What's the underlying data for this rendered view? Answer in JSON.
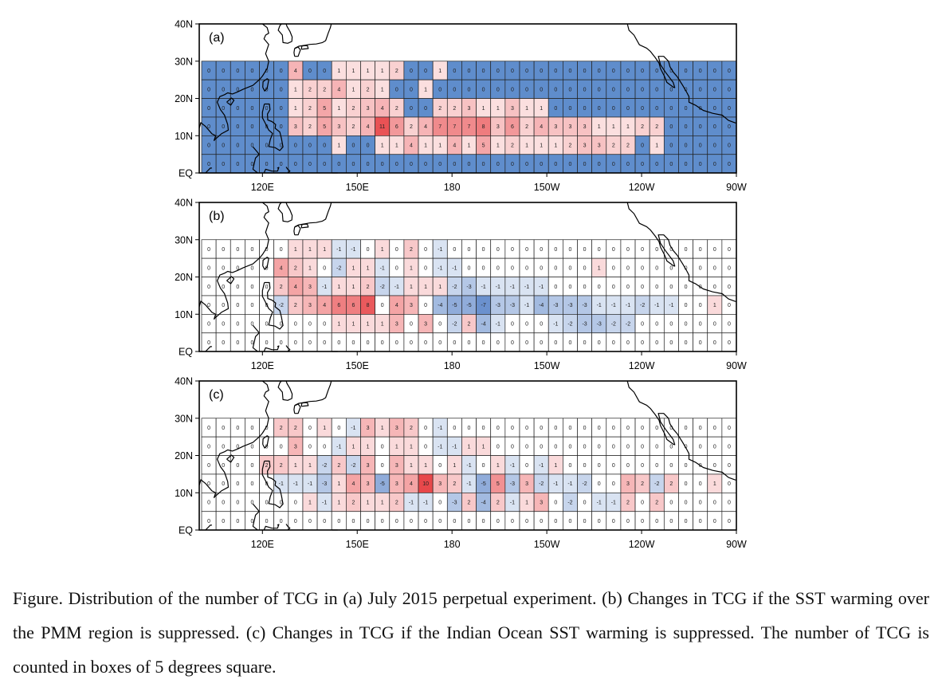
{
  "figure": {
    "lat_labels": [
      "40N",
      "30N",
      "20N",
      "10N",
      "EQ"
    ],
    "lon_labels": [
      "120E",
      "150E",
      "180",
      "150W",
      "120W",
      "90W"
    ],
    "colors": {
      "positive": "#e8484b",
      "negative": "#5a84c8",
      "zero_fill_a": "#5f8dcc",
      "grid_line": "#222222",
      "coast": "#000000"
    },
    "panels": [
      {
        "label": "(a)",
        "rows": [
          [
            0,
            0,
            0,
            0,
            0,
            0,
            4,
            0,
            0,
            1,
            1,
            1,
            1,
            2,
            0,
            0,
            1,
            0,
            0,
            0,
            0,
            0,
            0,
            0,
            0,
            0,
            0,
            0,
            0,
            0,
            0,
            0,
            0,
            0,
            0,
            0,
            0
          ],
          [
            0,
            0,
            0,
            0,
            0,
            0,
            1,
            2,
            2,
            4,
            1,
            2,
            1,
            0,
            0,
            1,
            0,
            0,
            0,
            0,
            0,
            0,
            0,
            0,
            0,
            0,
            0,
            0,
            0,
            0,
            0,
            0,
            0,
            0,
            0,
            0,
            0
          ],
          [
            0,
            0,
            0,
            0,
            0,
            0,
            1,
            2,
            5,
            1,
            2,
            3,
            4,
            2,
            0,
            0,
            2,
            2,
            3,
            1,
            1,
            3,
            1,
            1,
            0,
            0,
            0,
            0,
            0,
            0,
            0,
            0,
            0,
            0,
            0,
            0,
            0
          ],
          [
            0,
            0,
            0,
            0,
            0,
            0,
            3,
            2,
            5,
            3,
            2,
            4,
            11,
            6,
            2,
            4,
            7,
            7,
            7,
            8,
            3,
            6,
            2,
            4,
            3,
            3,
            3,
            1,
            1,
            1,
            2,
            2,
            0,
            0,
            0,
            0,
            0
          ],
          [
            0,
            0,
            0,
            0,
            0,
            0,
            0,
            0,
            0,
            1,
            0,
            0,
            1,
            1,
            4,
            1,
            1,
            4,
            1,
            5,
            1,
            2,
            1,
            1,
            1,
            2,
            3,
            3,
            2,
            2,
            0,
            1,
            0,
            0,
            0,
            0,
            0
          ],
          [
            0,
            0,
            0,
            0,
            0,
            0,
            0,
            0,
            0,
            0,
            0,
            0,
            0,
            0,
            0,
            0,
            0,
            0,
            0,
            0,
            0,
            0,
            0,
            0,
            0,
            0,
            0,
            0,
            0,
            0,
            0,
            0,
            0,
            0,
            0,
            0,
            0
          ]
        ]
      },
      {
        "label": "(b)",
        "rows": [
          [
            0,
            0,
            0,
            0,
            0,
            0,
            1,
            1,
            1,
            -1,
            -1,
            0,
            1,
            0,
            2,
            0,
            -1,
            0,
            0,
            0,
            0,
            0,
            0,
            0,
            0,
            0,
            0,
            0,
            0,
            0,
            0,
            0,
            0,
            0,
            0,
            0,
            0
          ],
          [
            0,
            0,
            0,
            0,
            0,
            4,
            2,
            1,
            0,
            -2,
            1,
            1,
            -1,
            0,
            1,
            0,
            -1,
            -1,
            0,
            0,
            0,
            0,
            0,
            0,
            0,
            0,
            0,
            1,
            0,
            0,
            0,
            0,
            0,
            0,
            0,
            0,
            0
          ],
          [
            0,
            0,
            0,
            0,
            0,
            2,
            4,
            3,
            -1,
            1,
            1,
            2,
            -2,
            -1,
            1,
            1,
            1,
            -2,
            -3,
            -1,
            -1,
            -1,
            -1,
            -1,
            0,
            0,
            0,
            0,
            0,
            0,
            0,
            0,
            0,
            0,
            0,
            0,
            0
          ],
          [
            0,
            0,
            0,
            0,
            0,
            -2,
            2,
            3,
            4,
            6,
            6,
            8,
            0,
            4,
            3,
            0,
            -4,
            -5,
            -5,
            -7,
            -3,
            -3,
            -1,
            -4,
            -3,
            -3,
            -3,
            -1,
            -1,
            -1,
            -2,
            -1,
            -1,
            0,
            0,
            1,
            0
          ],
          [
            0,
            0,
            0,
            0,
            0,
            0,
            0,
            0,
            0,
            1,
            1,
            1,
            1,
            3,
            0,
            3,
            0,
            -2,
            2,
            -4,
            -1,
            0,
            0,
            0,
            -1,
            -2,
            -3,
            -3,
            -2,
            -2,
            0,
            0,
            0,
            0,
            0,
            0,
            0
          ],
          [
            0,
            0,
            0,
            0,
            0,
            0,
            0,
            0,
            0,
            0,
            0,
            0,
            0,
            0,
            0,
            0,
            0,
            0,
            0,
            0,
            0,
            0,
            0,
            0,
            0,
            0,
            0,
            0,
            0,
            0,
            0,
            0,
            0,
            0,
            0,
            0,
            0
          ]
        ]
      },
      {
        "label": "(c)",
        "rows": [
          [
            0,
            0,
            0,
            0,
            0,
            2,
            2,
            0,
            1,
            0,
            -1,
            3,
            1,
            3,
            2,
            0,
            -1,
            0,
            0,
            0,
            0,
            0,
            0,
            0,
            0,
            0,
            0,
            0,
            0,
            0,
            0,
            0,
            0,
            0,
            0,
            0,
            0
          ],
          [
            0,
            0,
            0,
            0,
            0,
            0,
            3,
            0,
            0,
            -1,
            1,
            1,
            0,
            1,
            1,
            0,
            -1,
            -1,
            1,
            1,
            0,
            0,
            0,
            0,
            0,
            0,
            0,
            0,
            0,
            0,
            0,
            0,
            0,
            0,
            0,
            0,
            0
          ],
          [
            0,
            0,
            0,
            0,
            2,
            2,
            1,
            1,
            -2,
            2,
            -2,
            3,
            0,
            3,
            1,
            1,
            0,
            1,
            -1,
            0,
            1,
            -1,
            0,
            -1,
            1,
            0,
            0,
            0,
            0,
            0,
            0,
            0,
            0,
            0,
            0,
            0,
            0
          ],
          [
            0,
            0,
            0,
            0,
            0,
            -1,
            -1,
            -1,
            -3,
            1,
            4,
            3,
            -5,
            3,
            4,
            10,
            3,
            2,
            -1,
            -5,
            5,
            -3,
            3,
            -2,
            -1,
            -1,
            -2,
            0,
            0,
            3,
            2,
            -2,
            2,
            0,
            0,
            1,
            0
          ],
          [
            0,
            0,
            0,
            0,
            0,
            0,
            0,
            1,
            -1,
            1,
            2,
            1,
            1,
            2,
            -1,
            -1,
            0,
            -3,
            2,
            -4,
            2,
            -1,
            1,
            3,
            0,
            -2,
            0,
            -1,
            -1,
            2,
            0,
            2,
            0,
            0,
            0,
            0,
            0
          ],
          [
            0,
            0,
            0,
            0,
            0,
            0,
            0,
            0,
            0,
            0,
            0,
            0,
            0,
            0,
            0,
            0,
            0,
            0,
            0,
            0,
            0,
            0,
            0,
            0,
            0,
            0,
            0,
            0,
            0,
            0,
            0,
            0,
            0,
            0,
            0,
            0,
            0
          ]
        ]
      }
    ]
  },
  "caption": "Figure. Distribution of the number of TCG in (a) July 2015 perpetual experiment. (b) Changes in TCG if the SST warming over the PMM region is suppressed. (c) Changes in TCG if the Indian Ocean SST warming is suppressed. The number of TCG is counted in boxes of 5 degrees square."
}
